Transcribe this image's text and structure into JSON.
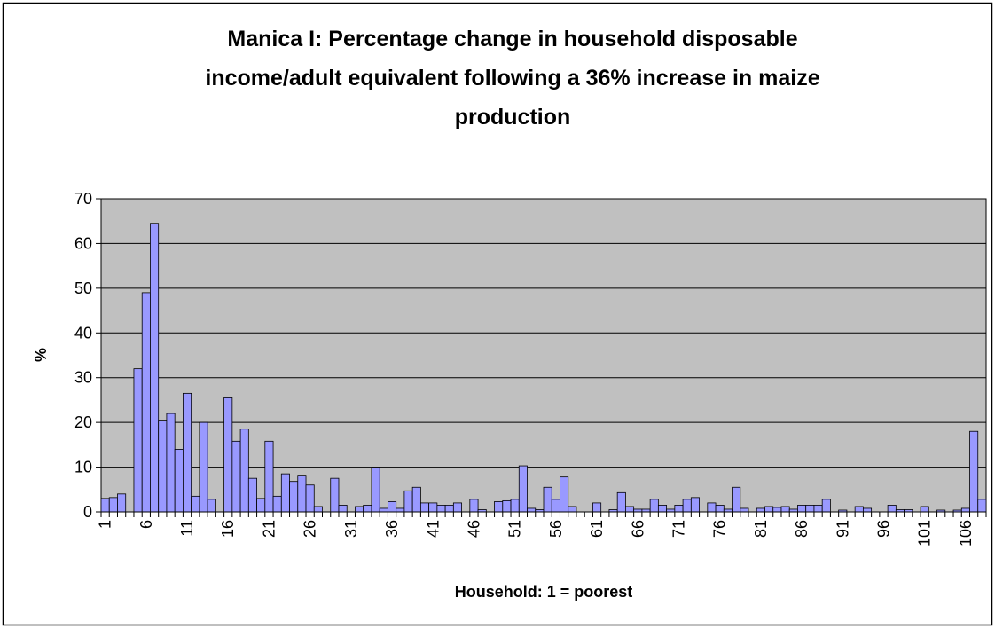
{
  "chart_data": {
    "type": "bar",
    "title": [
      "Manica I: Percentage change in household disposable",
      "income/adult equivalent following a 36% increase in maize",
      "production"
    ],
    "x_label": "Household: 1 = poorest",
    "y_label": "%",
    "color": "#9999ff",
    "background": "#c0c0c0",
    "grid": true,
    "ylim": [
      0,
      70
    ],
    "yticks": [
      0,
      10,
      20,
      30,
      40,
      50,
      60,
      70
    ],
    "categories": [
      "1",
      null,
      null,
      null,
      null,
      "6",
      null,
      null,
      null,
      null,
      "11",
      null,
      null,
      null,
      null,
      "16",
      null,
      null,
      null,
      null,
      "21",
      null,
      null,
      null,
      null,
      "26",
      null,
      null,
      null,
      null,
      "31",
      null,
      null,
      null,
      null,
      "36",
      null,
      null,
      null,
      null,
      "41",
      null,
      null,
      null,
      null,
      "46",
      null,
      null,
      null,
      null,
      "51",
      null,
      null,
      null,
      null,
      "56",
      null,
      null,
      null,
      null,
      "61",
      null,
      null,
      null,
      null,
      "66",
      null,
      null,
      null,
      null,
      "71",
      null,
      null,
      null,
      null,
      "76",
      null,
      null,
      null,
      null,
      "81",
      null,
      null,
      null,
      null,
      "86",
      null,
      null,
      null,
      null,
      "91",
      null,
      null,
      null,
      null,
      "96",
      null,
      null,
      null,
      null,
      "101",
      null,
      null,
      null,
      null,
      "106",
      null,
      null
    ],
    "values": [
      3,
      3.2,
      4,
      0,
      32,
      49,
      64.5,
      20.5,
      22,
      14,
      26.5,
      3.5,
      20,
      2.8,
      0,
      25.5,
      15.8,
      18.5,
      7.5,
      3,
      15.8,
      3.5,
      8.5,
      6.8,
      8.2,
      6,
      1.2,
      0,
      7.5,
      1.5,
      0,
      1.2,
      1.5,
      10,
      0.8,
      2.3,
      0.8,
      4.7,
      5.5,
      2,
      2,
      1.5,
      1.5,
      2,
      0,
      2.8,
      0.5,
      0,
      2.3,
      2.5,
      2.8,
      10.3,
      0.8,
      0.5,
      5.5,
      2.8,
      7.8,
      1.2,
      0,
      0,
      2,
      0,
      0.5,
      4.3,
      1.2,
      0.6,
      0.6,
      2.8,
      1.5,
      0.6,
      1.5,
      2.8,
      3.2,
      0,
      2,
      1.5,
      0.6,
      5.5,
      0.8,
      0,
      0.8,
      1.2,
      1,
      1.2,
      0.6,
      1.5,
      1.5,
      1.5,
      2.8,
      0,
      0.4,
      0,
      1.2,
      0.8,
      0,
      0,
      1.5,
      0.5,
      0.5,
      0,
      1.2,
      0,
      0.4,
      0,
      0.4,
      0.8,
      18,
      2.8
    ]
  }
}
